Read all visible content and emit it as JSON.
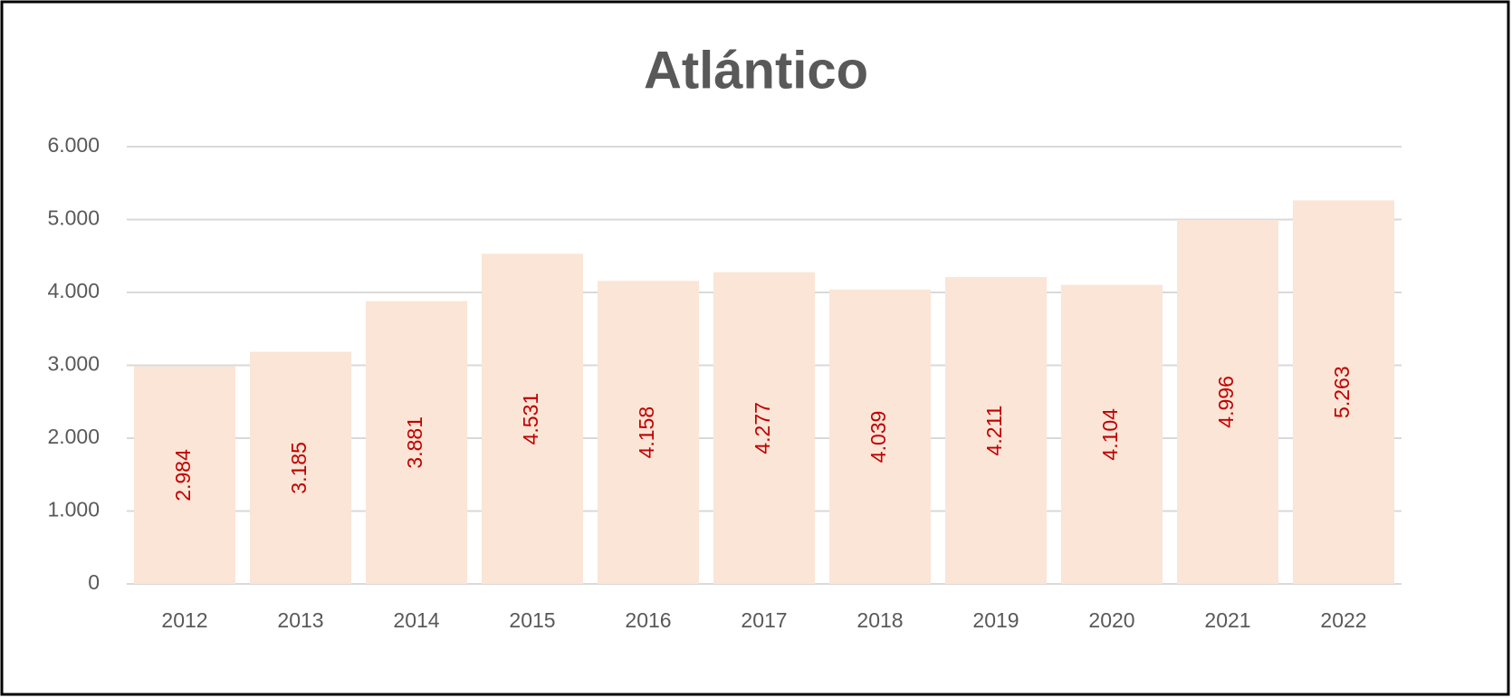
{
  "chart_data": {
    "type": "bar",
    "title": "Atlántico",
    "categories": [
      "2012",
      "2013",
      "2014",
      "2015",
      "2016",
      "2017",
      "2018",
      "2019",
      "2020",
      "2021",
      "2022"
    ],
    "values": [
      2984,
      3185,
      3881,
      4531,
      4158,
      4277,
      4039,
      4211,
      4104,
      4996,
      5263
    ],
    "value_labels": [
      "2.984",
      "3.185",
      "3.881",
      "4.531",
      "4.158",
      "4.277",
      "4.039",
      "4.211",
      "4.104",
      "4.996",
      "5.263"
    ],
    "color": "#fbe5d6",
    "label_color": "#c00000",
    "ylim": [
      0,
      6000
    ],
    "yticks": [
      0,
      {
        "value": 1000,
        "label": "1.000"
      },
      {
        "value": 2000,
        "label": "2.000"
      },
      {
        "value": 3000,
        "label": "3.000"
      },
      {
        "value": 4000,
        "label": "4.000"
      },
      {
        "value": 5000,
        "label": "5.000"
      },
      {
        "value": 6000,
        "label": "6.000"
      }
    ],
    "grid": true
  }
}
